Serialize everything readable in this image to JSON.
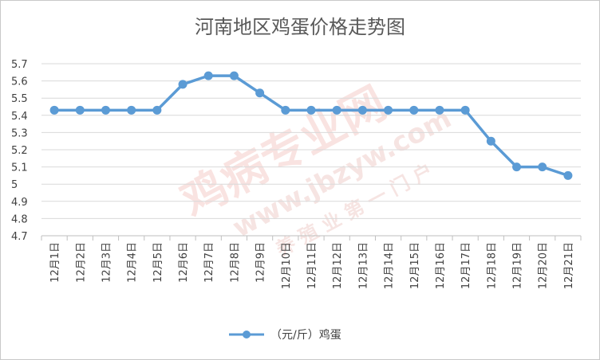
{
  "chart_data": {
    "type": "line",
    "title": "河南地区鸡蛋价格走势图",
    "xlabel": "",
    "ylabel": "",
    "categories": [
      "12月1日",
      "12月2日",
      "12月3日",
      "12月4日",
      "12月5日",
      "12月6日",
      "12月7日",
      "12月8日",
      "12月9日",
      "12月10日",
      "12月11日",
      "12月12日",
      "12月13日",
      "12月14日",
      "12月15日",
      "12月16日",
      "12月17日",
      "12月18日",
      "12月19日",
      "12月20日",
      "12月21日"
    ],
    "series": [
      {
        "name": "（元/斤）鸡蛋",
        "values": [
          5.43,
          5.43,
          5.43,
          5.43,
          5.43,
          5.58,
          5.63,
          5.63,
          5.53,
          5.43,
          5.43,
          5.43,
          5.43,
          5.43,
          5.43,
          5.43,
          5.43,
          5.25,
          5.1,
          5.1,
          5.05
        ],
        "color": "#5b9bd5"
      }
    ],
    "ylim": [
      4.7,
      5.7
    ],
    "yticks": [
      "4.7",
      "4.8",
      "4.9",
      "5",
      "5.1",
      "5.2",
      "5.3",
      "5.4",
      "5.5",
      "5.6",
      "5.7"
    ],
    "grid": true,
    "legend": "bottom-center",
    "watermark": {
      "brand": "鸡病专业网",
      "url": "www.jbzyw.com",
      "slogan": "养 殖 业 第 一 门 户"
    }
  }
}
